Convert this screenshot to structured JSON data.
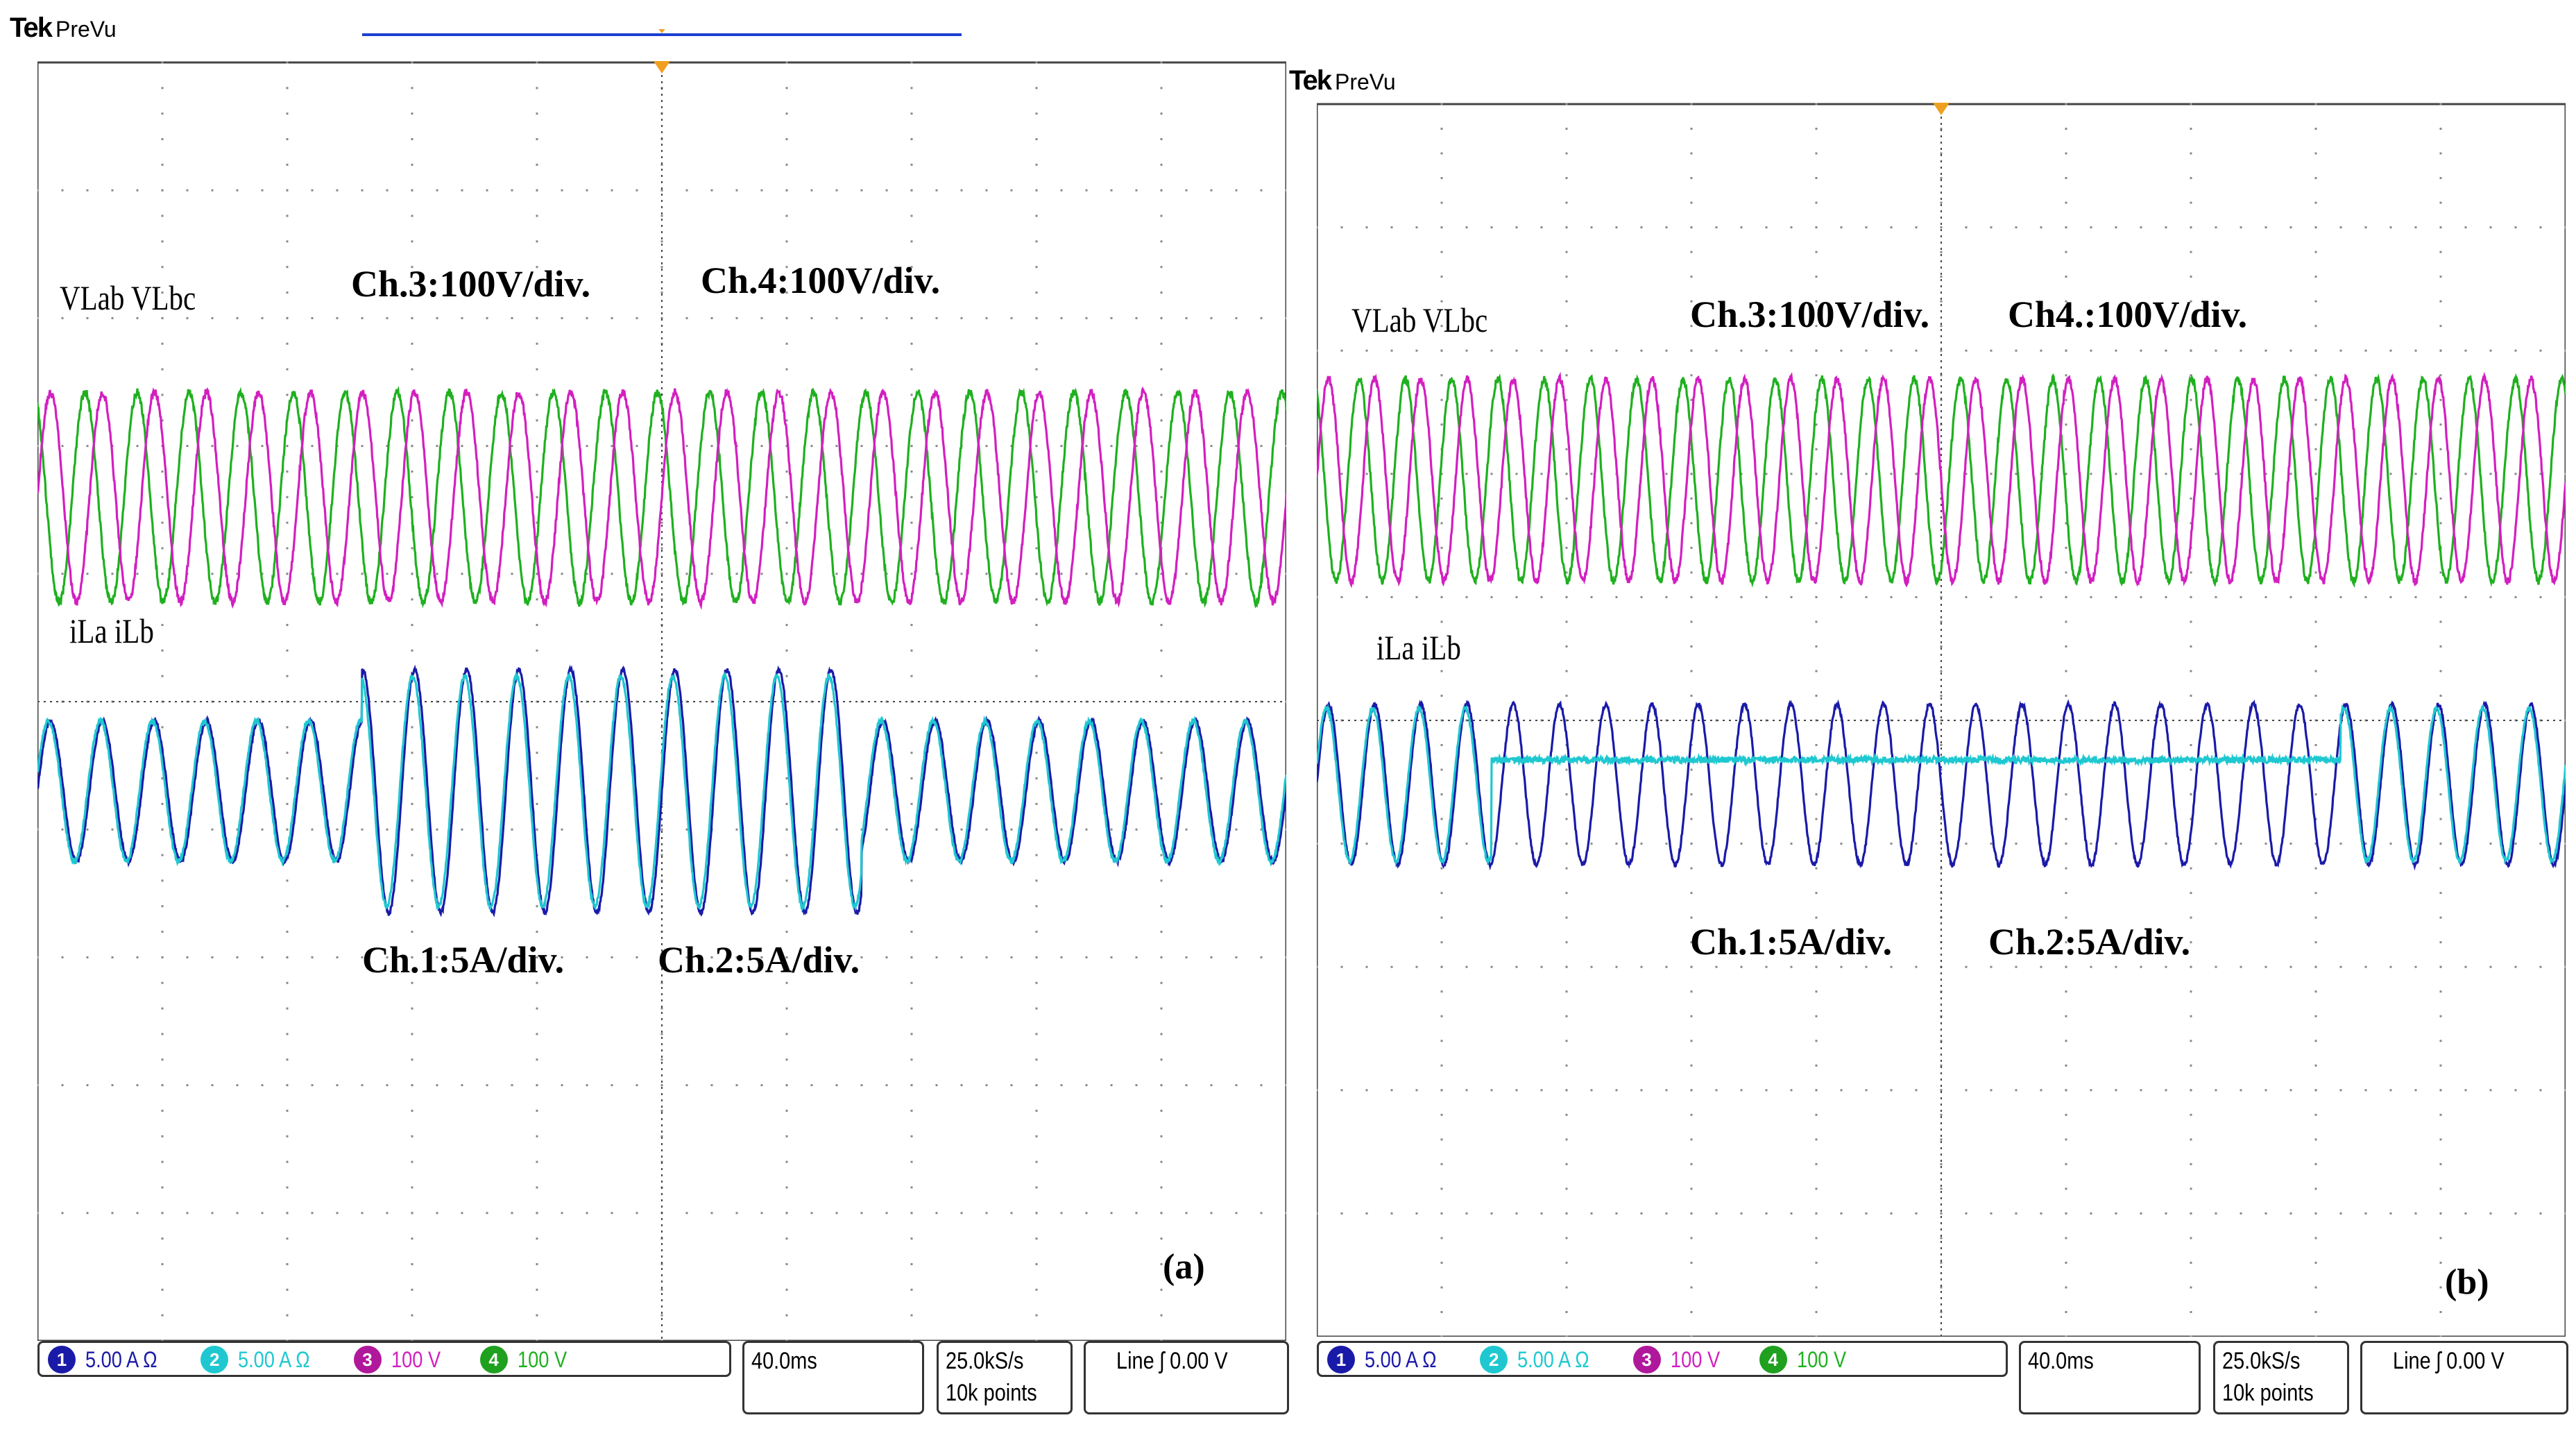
{
  "colors": {
    "ch1": "#1a1aa8",
    "ch2": "#1fc8d0",
    "ch3": "#d21fc0",
    "ch4": "#1fb01f",
    "trigger": "#f0a020",
    "record_bar": "#1a3fd0"
  },
  "panels": [
    {
      "id": "a",
      "brand": "Tek",
      "mode": "PreVu",
      "voltage_label": "VLab VLbc",
      "current_label": "iLa iLb",
      "ann_v1": "Ch.3:100V/div.",
      "ann_v2": "Ch.4:100V/div.",
      "ann_i1": "Ch.1:5A/div.",
      "ann_i2": "Ch.2:5A/div.",
      "sublabel": "(a)",
      "ch1_marker": "1",
      "ch4_marker": "4",
      "status": {
        "ch1_num": "1",
        "ch1_scale": "5.00 A Ω",
        "ch2_num": "2",
        "ch2_scale": "5.00 A Ω",
        "ch3_num": "3",
        "ch3_scale": "100 V",
        "ch4_num": "4",
        "ch4_scale": "100 V",
        "timebase": "40.0ms",
        "rate": "25.0kS/s",
        "points": "10k points",
        "trigger": "Line ʃ 0.00 V"
      }
    },
    {
      "id": "b",
      "brand": "Tek",
      "mode": "PreVu",
      "voltage_label": "VLab VLbc",
      "current_label": "iLa iLb",
      "ann_v1": "Ch.3:100V/div.",
      "ann_v2": "Ch4.:100V/div.",
      "ann_i1": "Ch.1:5A/div.",
      "ann_i2": "Ch.2:5A/div.",
      "sublabel": "(b)",
      "ch1_marker": "1",
      "ch4_marker": "4",
      "status": {
        "ch1_num": "1",
        "ch1_scale": "5.00 A Ω",
        "ch2_num": "2",
        "ch2_scale": "5.00 A Ω",
        "ch3_num": "3",
        "ch3_scale": "100 V",
        "ch4_num": "4",
        "ch4_scale": "100 V",
        "timebase": "40.0ms",
        "rate": "25.0kS/s",
        "points": "10k points",
        "trigger": "Line ʃ 0.00 V"
      }
    }
  ],
  "chart_data": [
    {
      "type": "line",
      "panel": "a",
      "grid": true,
      "x_divisions": 10,
      "y_divisions": 10,
      "cycles": 24,
      "series": [
        {
          "channel": 3,
          "name": "VLab",
          "center_div": 3.4,
          "amplitude_div": [
            0.82,
            0.82
          ],
          "phase": 0.0,
          "noise": 0.06
        },
        {
          "channel": 4,
          "name": "VLbc",
          "center_div": 3.4,
          "amplitude_div": [
            0.82,
            0.82
          ],
          "phase": 2.094,
          "noise": 0.06
        },
        {
          "channel": 1,
          "name": "iLa",
          "center_div": 5.7,
          "amplitude_div": [
            0.55,
            0.95,
            0.55
          ],
          "step_div": [
            2.6,
            6.6
          ],
          "phase": 0.0,
          "noise": 0.035
        },
        {
          "channel": 2,
          "name": "iLb",
          "center_div": 5.7,
          "amplitude_div": [
            0.55,
            0.9,
            0.55
          ],
          "step_div": [
            2.6,
            6.6
          ],
          "phase": 0.25,
          "noise": 0.035
        }
      ]
    },
    {
      "type": "line",
      "panel": "b",
      "grid": true,
      "x_divisions": 10,
      "y_divisions": 10,
      "cycles": 27,
      "series": [
        {
          "channel": 3,
          "name": "VLab",
          "center_div": 3.05,
          "amplitude_div": [
            0.82,
            0.82
          ],
          "phase": 0.0,
          "noise": 0.06
        },
        {
          "channel": 4,
          "name": "VLbc",
          "center_div": 3.05,
          "amplitude_div": [
            0.82,
            0.82
          ],
          "phase": 2.094,
          "noise": 0.06
        },
        {
          "channel": 1,
          "name": "iLa",
          "center_div": 5.52,
          "amplitude_div": [
            0.65,
            0.65,
            0.65
          ],
          "step_div": [
            1.4,
            8.2
          ],
          "phase": 0.0,
          "noise": 0.035
        },
        {
          "channel": 2,
          "name": "iLb",
          "center_div": 5.52,
          "amplitude_div": [
            0.62,
            0.0,
            0.62
          ],
          "step_div": [
            1.4,
            8.2
          ],
          "phase": 0.25,
          "noise": 0.03,
          "flat_level_div": 5.32
        }
      ]
    }
  ]
}
